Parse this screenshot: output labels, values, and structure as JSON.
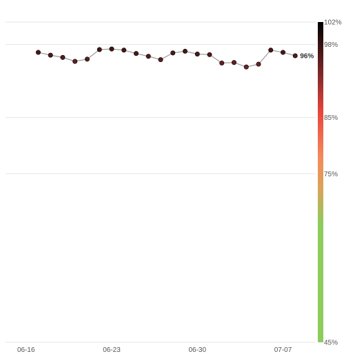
{
  "chart_data": {
    "type": "line",
    "title": "",
    "xlabel": "",
    "ylabel": "",
    "x": [
      "06-17",
      "06-18",
      "06-19",
      "06-20",
      "06-21",
      "06-22",
      "06-23",
      "06-24",
      "06-25",
      "06-26",
      "06-27",
      "06-28",
      "06-29",
      "06-30",
      "07-01",
      "07-02",
      "07-03",
      "07-04",
      "07-05",
      "07-06",
      "07-07",
      "07-08"
    ],
    "series": [
      {
        "name": "",
        "values": [
          96.6,
          96.1,
          95.7,
          95.0,
          95.4,
          97.1,
          97.2,
          97.0,
          96.4,
          95.9,
          95.3,
          96.5,
          96.8,
          96.3,
          96.2,
          94.7,
          94.8,
          94.0,
          94.5,
          97.0,
          96.6,
          96.0
        ]
      }
    ],
    "last_value_label": "96%",
    "x_ticks": [
      "06-16",
      "06-23",
      "06-30",
      "07-07"
    ],
    "x_range": [
      "06-15",
      "07-09"
    ],
    "ylim": [
      45,
      102
    ],
    "y_gridlines": [
      102,
      98,
      85,
      75,
      45
    ],
    "colorbar": {
      "ticks": [
        "102%",
        "98%",
        "85%",
        "75%",
        "45%"
      ],
      "tick_values": [
        102,
        98,
        85,
        75,
        45
      ],
      "stops": [
        {
          "value": 45,
          "color": "#8ccc5c"
        },
        {
          "value": 66,
          "color": "#8ccc5c"
        },
        {
          "value": 72,
          "color": "#d6a55a"
        },
        {
          "value": 78,
          "color": "#f58a5a"
        },
        {
          "value": 86,
          "color": "#e8453c"
        },
        {
          "value": 92,
          "color": "#8a2c2c"
        },
        {
          "value": 102,
          "color": "#000000"
        }
      ]
    },
    "grid": true,
    "legend": "none"
  }
}
